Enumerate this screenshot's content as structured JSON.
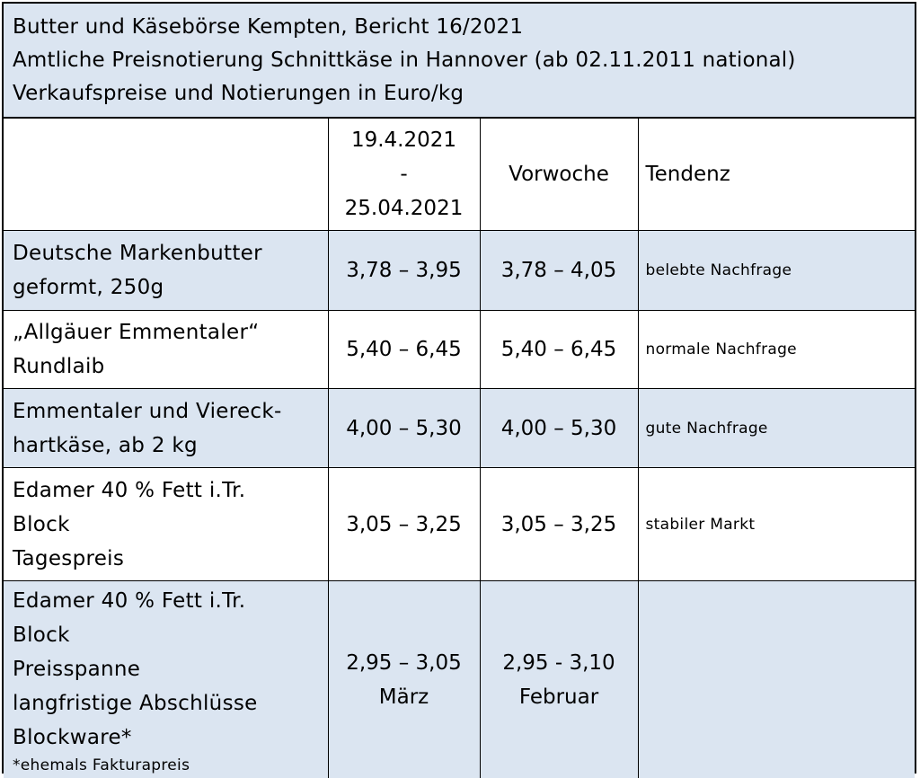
{
  "header": {
    "line1": "Butter und Käsebörse Kempten, Bericht 16/2021",
    "line2": "Amtliche Preisnotierung Schnittkäse in Hannover (ab 02.11.2011  national)",
    "line3": "Verkaufspreise und Notierungen  in Euro/kg"
  },
  "columns": {
    "date_from": "19.4.2021",
    "date_sep": "-",
    "date_to": "25.04.2021",
    "previous": "Vorwoche",
    "trend": "Tendenz"
  },
  "rows": [
    {
      "label_lines": [
        "Deutsche Markenbutter",
        "geformt, 250g"
      ],
      "current": "3,78 – 3,95",
      "previous": "3,78 – 4,05",
      "trend": "belebte Nachfrage"
    },
    {
      "label_lines": [
        "„Allgäuer Emmentaler“",
        "Rundlaib"
      ],
      "current": "5,40 – 6,45",
      "previous": "5,40 – 6,45",
      "trend": "normale Nachfrage"
    },
    {
      "label_lines": [
        "Emmentaler und Viereck-",
        "hartkäse, ab 2 kg"
      ],
      "current": "4,00 – 5,30",
      "previous": "4,00 – 5,30",
      "trend": "gute Nachfrage"
    },
    {
      "label_lines": [
        "Edamer 40 % Fett i.Tr.",
        "Block",
        "Tagespreis"
      ],
      "current": "3,05 – 3,25",
      "previous": "3,05 – 3,25",
      "trend": "stabiler Markt"
    },
    {
      "label_lines": [
        "Edamer 40 % Fett i.Tr.",
        "Block",
        "Preisspanne",
        "langfristige Abschlüsse",
        "Blockware*"
      ],
      "note": "*ehemals Fakturapreis",
      "current": "2,95 – 3,05",
      "current_sub": "März",
      "previous": "2,95 - 3,10",
      "previous_sub": "Februar",
      "trend": ""
    }
  ],
  "colors": {
    "header_bg": "#dbe5f1",
    "row_alt_bg": "#dbe5f1",
    "border": "#000000"
  }
}
